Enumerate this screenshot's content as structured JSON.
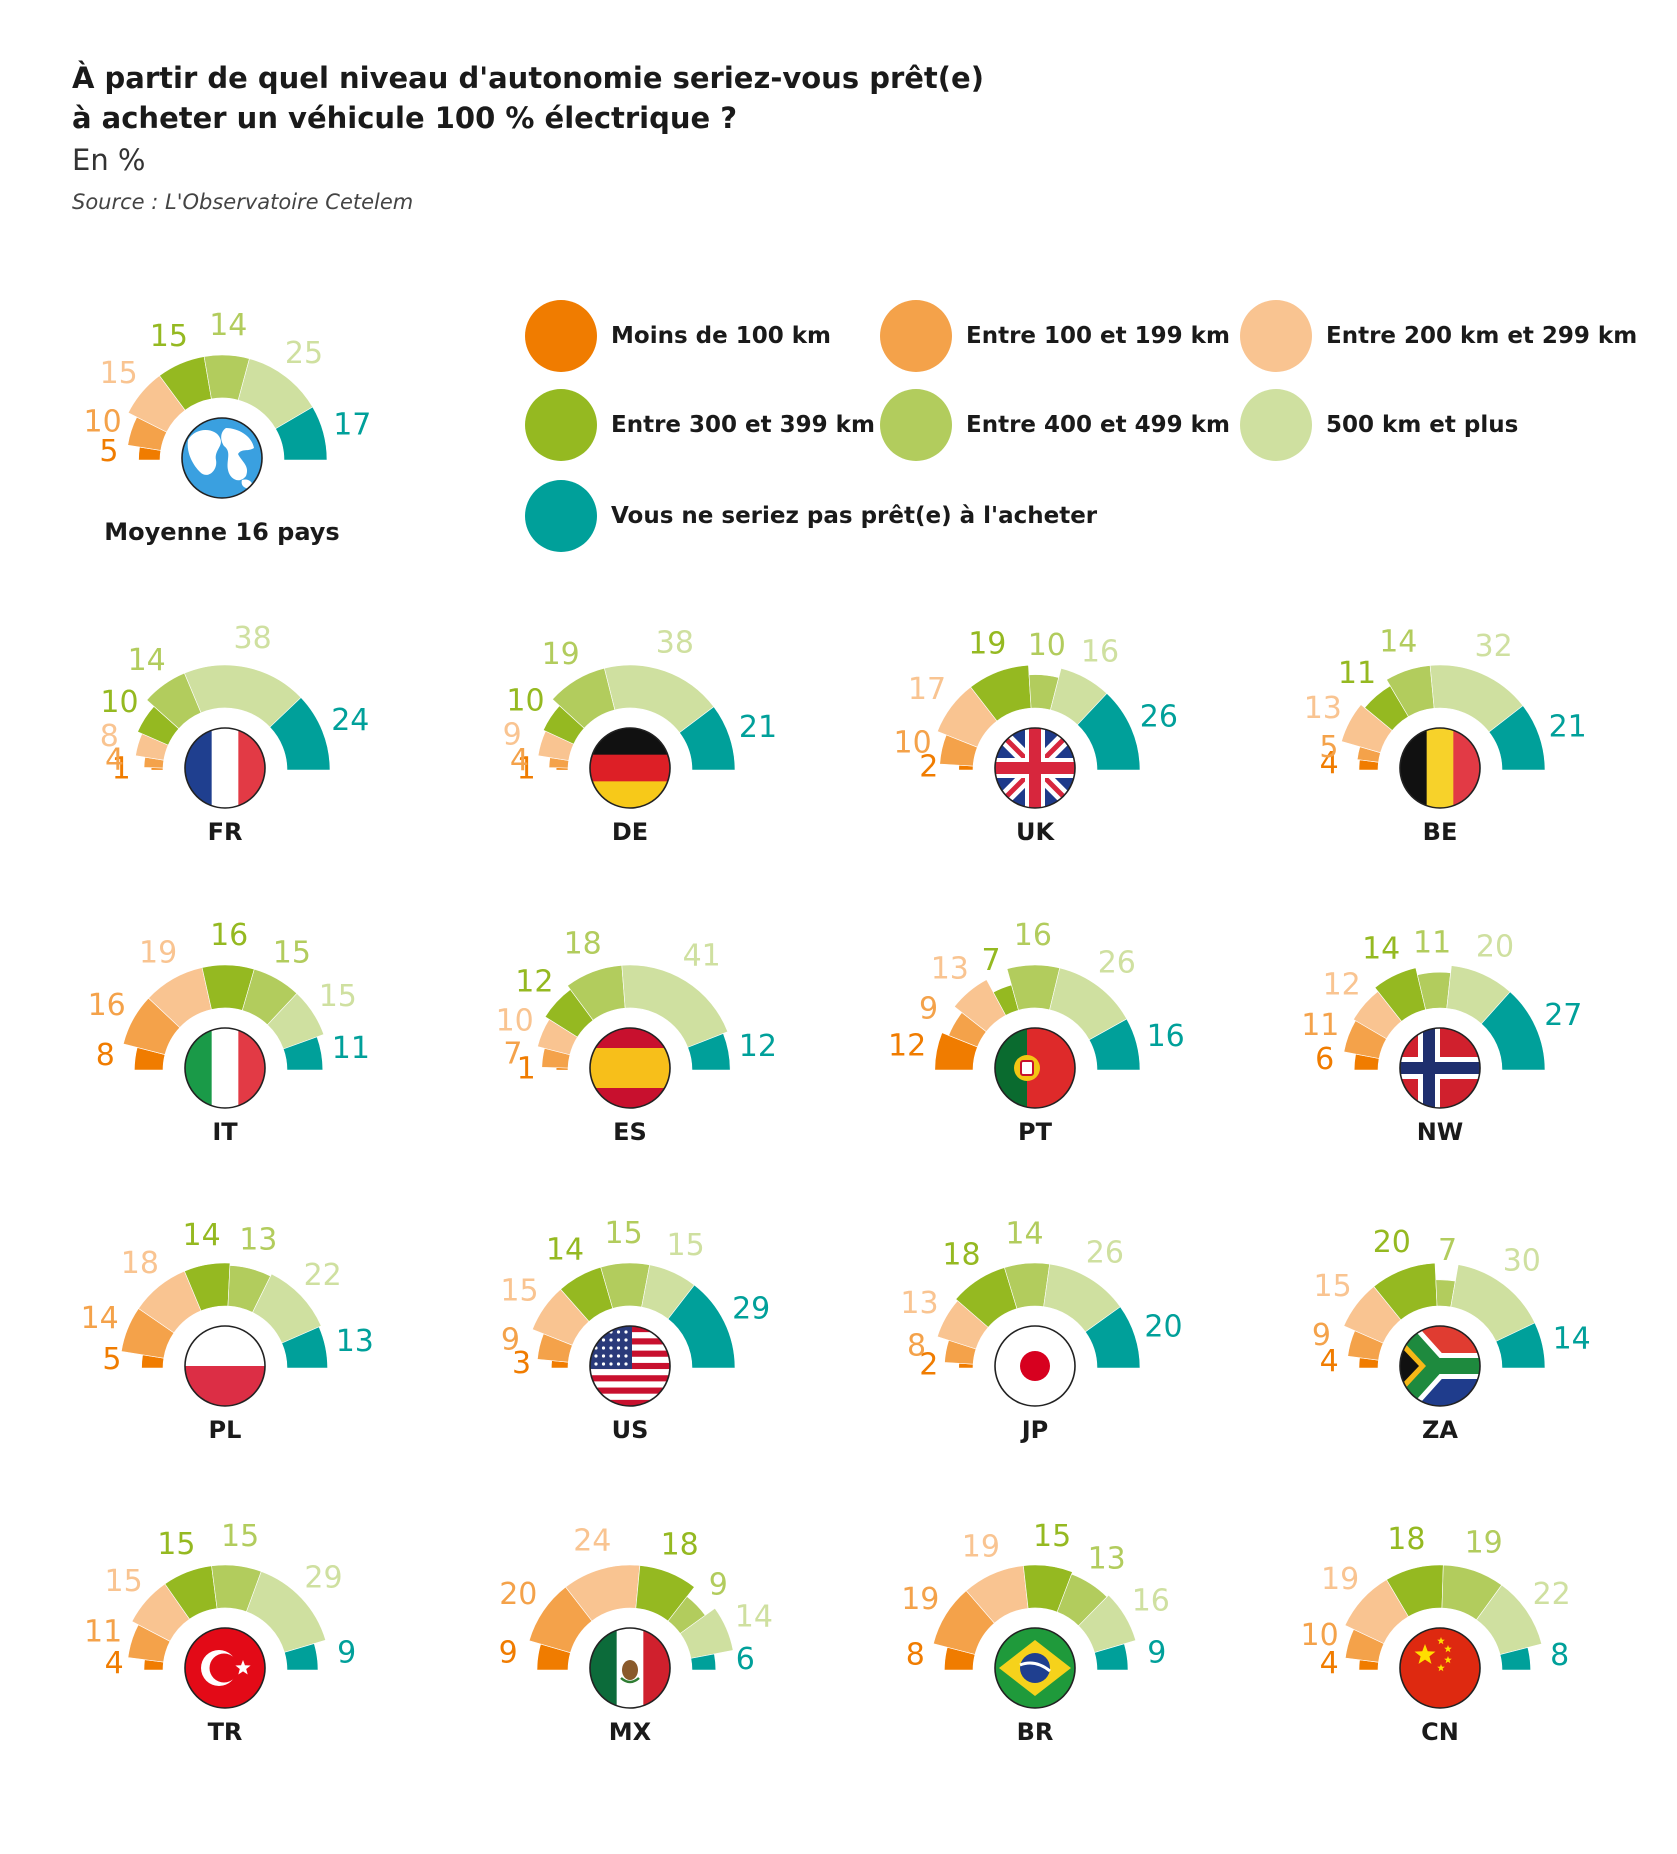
{
  "header": {
    "title_line1": "À partir de quel niveau d'autonomie seriez-vous prêt(e)",
    "title_line2": "à acheter un véhicule 100 % électrique ?",
    "unit": "En %",
    "source": "Source : L'Observatoire Cetelem"
  },
  "colors": [
    "#f07c00",
    "#f4a24a",
    "#f9c491",
    "#95b921",
    "#b2cc5d",
    "#cfe0a0",
    "#00a09a"
  ],
  "legend": [
    {
      "label": "Moins de 100 km",
      "color": "#f07c00"
    },
    {
      "label": "Entre 100 et 199 km",
      "color": "#f4a24a"
    },
    {
      "label": "Entre 200 km et 299 km",
      "color": "#f9c491"
    },
    {
      "label": "Entre 300 et 399 km",
      "color": "#95b921"
    },
    {
      "label": "Entre 400 et 499 km",
      "color": "#b2cc5d"
    },
    {
      "label": "500 km et plus",
      "color": "#cfe0a0"
    },
    {
      "label": "Vous ne seriez pas prêt(e) à l'acheter",
      "color": "#00a09a"
    }
  ],
  "chart_data": {
    "type": "pie",
    "series_names": [
      "Moins de 100 km",
      "Entre 100 et 199 km",
      "Entre 200 km et 299 km",
      "Entre 300 et 399 km",
      "Entre 400 et 499 km",
      "500 km et plus",
      "Vous ne seriez pas prêt(e) à l'acheter"
    ],
    "average": {
      "label": "Moyenne 16 pays",
      "icon": "globe-icon",
      "values": [
        5,
        10,
        15,
        15,
        14,
        25,
        17
      ]
    },
    "countries": [
      {
        "code": "FR",
        "flag": "france-flag-icon",
        "values": [
          1,
          4,
          8,
          10,
          14,
          38,
          24
        ]
      },
      {
        "code": "DE",
        "flag": "germany-flag-icon",
        "values": [
          1,
          4,
          9,
          10,
          19,
          38,
          21
        ]
      },
      {
        "code": "UK",
        "flag": "uk-flag-icon",
        "values": [
          2,
          10,
          17,
          19,
          10,
          16,
          26
        ]
      },
      {
        "code": "BE",
        "flag": "belgium-flag-icon",
        "values": [
          4,
          5,
          13,
          11,
          14,
          32,
          21
        ]
      },
      {
        "code": "IT",
        "flag": "italy-flag-icon",
        "values": [
          8,
          16,
          19,
          16,
          15,
          15,
          11
        ]
      },
      {
        "code": "ES",
        "flag": "spain-flag-icon",
        "values": [
          1,
          7,
          10,
          12,
          18,
          41,
          12
        ]
      },
      {
        "code": "PT",
        "flag": "portugal-flag-icon",
        "values": [
          12,
          9,
          13,
          7,
          16,
          26,
          16
        ]
      },
      {
        "code": "NW",
        "flag": "norway-flag-icon",
        "values": [
          6,
          11,
          12,
          14,
          11,
          20,
          27
        ]
      },
      {
        "code": "PL",
        "flag": "poland-flag-icon",
        "values": [
          5,
          14,
          18,
          14,
          13,
          22,
          13
        ]
      },
      {
        "code": "US",
        "flag": "usa-flag-icon",
        "values": [
          3,
          9,
          15,
          14,
          15,
          15,
          29
        ]
      },
      {
        "code": "JP",
        "flag": "japan-flag-icon",
        "values": [
          2,
          8,
          13,
          18,
          14,
          26,
          20
        ]
      },
      {
        "code": "ZA",
        "flag": "south-africa-flag-icon",
        "values": [
          4,
          9,
          15,
          20,
          7,
          30,
          14
        ]
      },
      {
        "code": "TR",
        "flag": "turkey-flag-icon",
        "values": [
          4,
          11,
          15,
          15,
          15,
          29,
          9
        ]
      },
      {
        "code": "MX",
        "flag": "mexico-flag-icon",
        "values": [
          9,
          20,
          24,
          18,
          9,
          14,
          6
        ]
      },
      {
        "code": "BR",
        "flag": "brazil-flag-icon",
        "values": [
          8,
          19,
          19,
          15,
          13,
          16,
          9
        ]
      },
      {
        "code": "CN",
        "flag": "china-flag-icon",
        "values": [
          4,
          10,
          19,
          18,
          19,
          22,
          8
        ]
      }
    ]
  }
}
